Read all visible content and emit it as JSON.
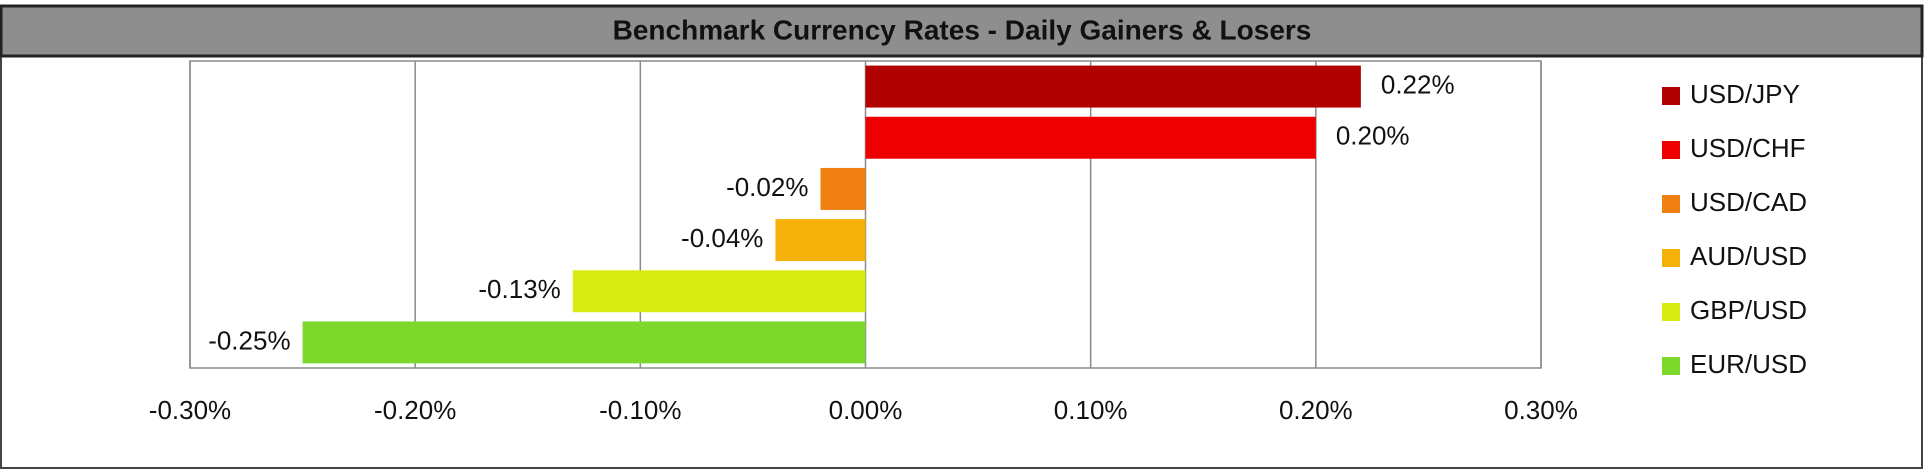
{
  "chart_data": {
    "type": "bar",
    "orientation": "horizontal",
    "title": "Benchmark Currency Rates - Daily Gainers & Losers",
    "series": [
      {
        "name": "USD/JPY",
        "color": "#b00000",
        "values": [
          0.22
        ],
        "value_labels": [
          "0.22%"
        ]
      },
      {
        "name": "USD/CHF",
        "color": "#ee0000",
        "values": [
          0.2
        ],
        "value_labels": [
          "0.20%"
        ]
      },
      {
        "name": "USD/CAD",
        "color": "#f07f12",
        "values": [
          -0.02
        ],
        "value_labels": [
          "-0.02%"
        ]
      },
      {
        "name": "AUD/USD",
        "color": "#f5b10a",
        "values": [
          -0.04
        ],
        "value_labels": [
          "-0.04%"
        ]
      },
      {
        "name": "GBP/USD",
        "color": "#d9ec12",
        "values": [
          -0.13
        ],
        "value_labels": [
          "-0.13%"
        ]
      },
      {
        "name": "EUR/USD",
        "color": "#7ed82c",
        "values": [
          -0.25
        ],
        "value_labels": [
          "-0.25%"
        ]
      }
    ],
    "xlim": [
      -0.3,
      0.3
    ],
    "xticks": [
      {
        "value": -0.3,
        "label": "-0.30%"
      },
      {
        "value": -0.2,
        "label": "-0.20%"
      },
      {
        "value": -0.1,
        "label": "-0.10%"
      },
      {
        "value": 0,
        "label": "0.00%"
      },
      {
        "value": 0.1,
        "label": "0.10%"
      },
      {
        "value": 0.2,
        "label": "0.20%"
      },
      {
        "value": 0.3,
        "label": "0.30%"
      }
    ],
    "grid": true,
    "legend": "right"
  }
}
